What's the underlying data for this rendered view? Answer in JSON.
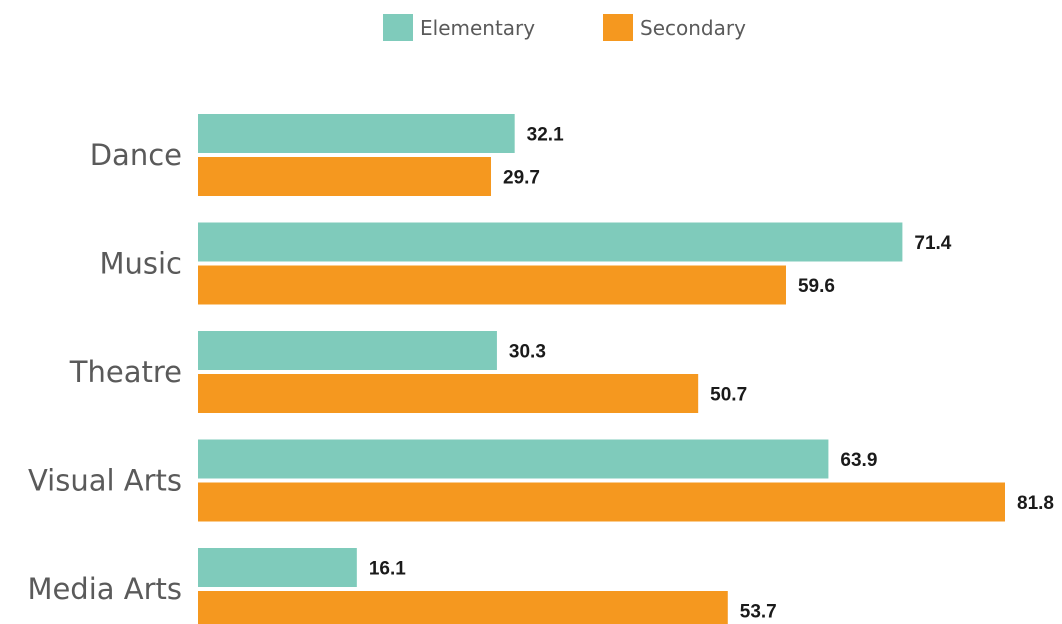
{
  "chart_data": {
    "type": "bar",
    "orientation": "horizontal",
    "title": "",
    "xlabel": "",
    "ylabel": "",
    "categories": [
      "Dance",
      "Music",
      "Theatre",
      "Visual Arts",
      "Media Arts"
    ],
    "series": [
      {
        "name": "Elementary",
        "color": "#7fcbbb",
        "values": [
          32.1,
          71.4,
          30.3,
          63.9,
          16.1
        ]
      },
      {
        "name": "Secondary",
        "color": "#f5981f",
        "values": [
          29.7,
          59.6,
          50.7,
          81.8,
          53.7
        ]
      }
    ],
    "xlim": [
      0,
      81.8
    ],
    "grid": false,
    "legend_position": "top-center"
  }
}
